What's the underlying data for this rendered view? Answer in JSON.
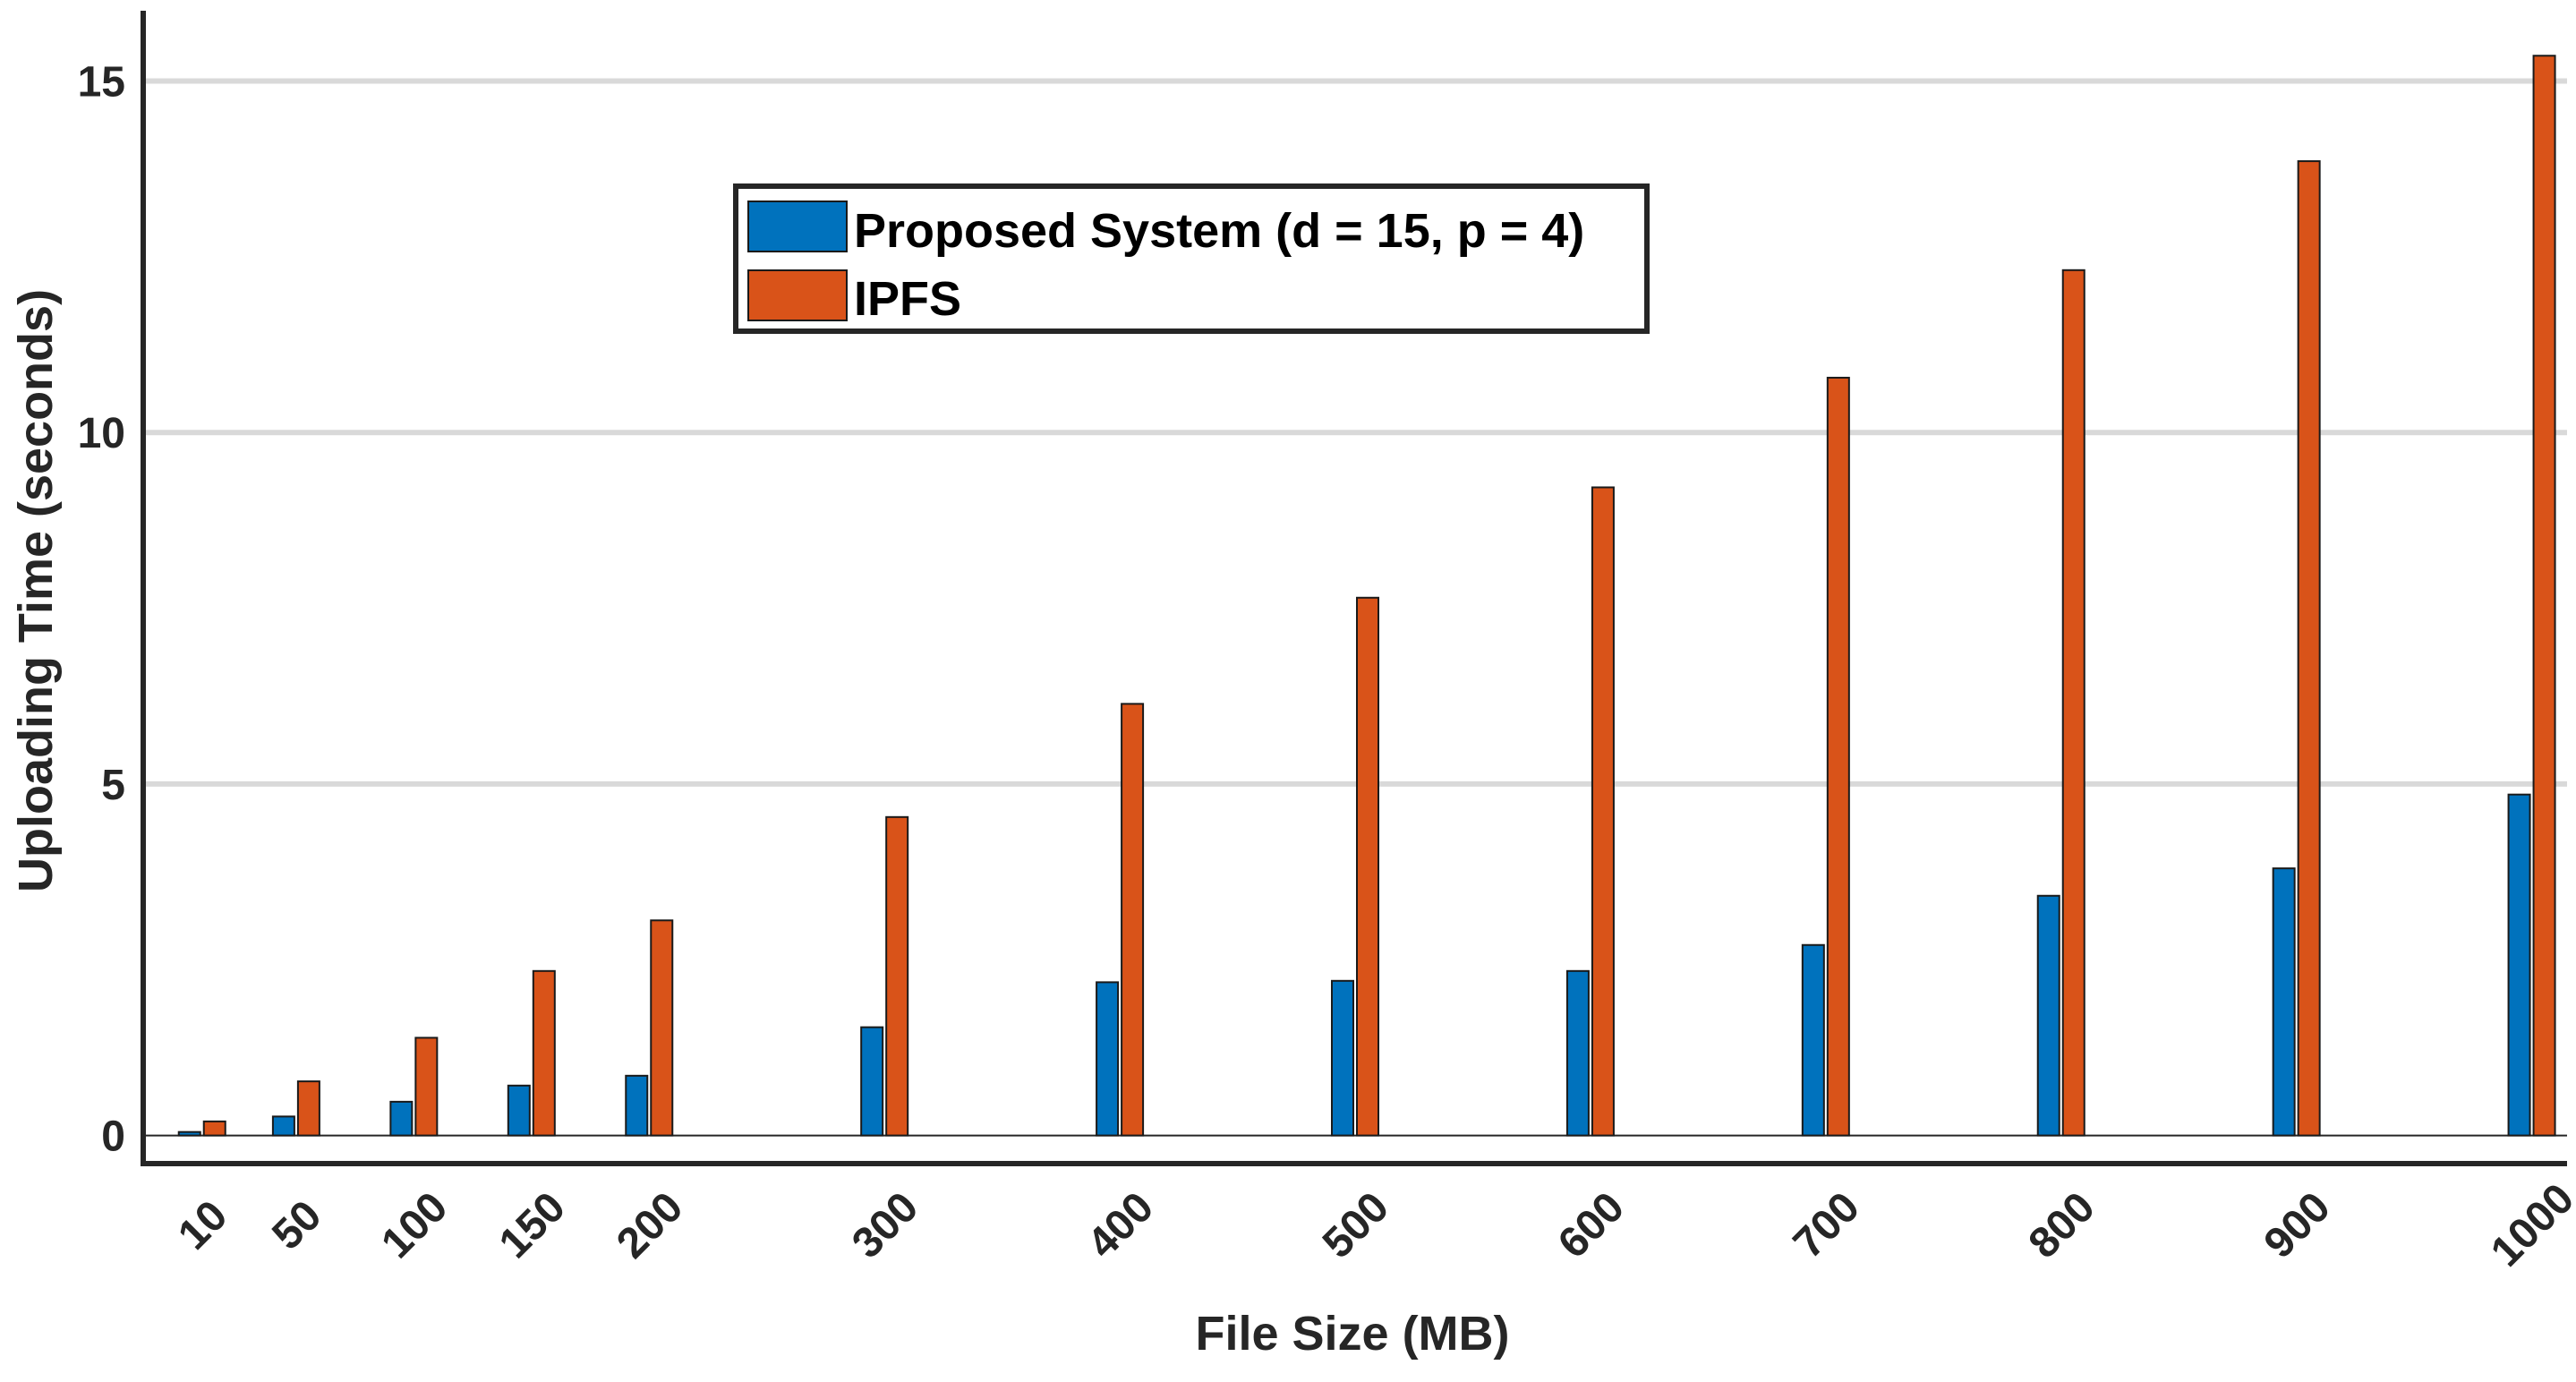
{
  "chart_data": {
    "type": "bar",
    "title": "",
    "xlabel": "File Size (MB)",
    "ylabel": "Uploading Time (seconds)",
    "categories": [
      "10",
      "50",
      "100",
      "150",
      "200",
      "300",
      "400",
      "500",
      "600",
      "700",
      "800",
      "900",
      "1000"
    ],
    "x": [
      10,
      50,
      100,
      150,
      200,
      300,
      400,
      500,
      600,
      700,
      800,
      900,
      1000
    ],
    "xlim": [
      -15,
      1015
    ],
    "ylim": [
      -0.4,
      16
    ],
    "yticks": [
      0,
      5,
      10,
      15
    ],
    "grid": true,
    "legend_position": "top-center",
    "series": [
      {
        "name": "Proposed System (d = 15, p = 4)",
        "color": "#0072BD",
        "values": [
          0.05,
          0.27,
          0.48,
          0.71,
          0.85,
          1.54,
          2.18,
          2.2,
          2.34,
          2.71,
          3.41,
          3.8,
          4.85
        ]
      },
      {
        "name": "IPFS",
        "color": "#D95319",
        "values": [
          0.2,
          0.77,
          1.39,
          2.34,
          3.06,
          4.53,
          6.14,
          7.65,
          9.22,
          10.78,
          12.31,
          13.86,
          15.36
        ]
      }
    ]
  }
}
